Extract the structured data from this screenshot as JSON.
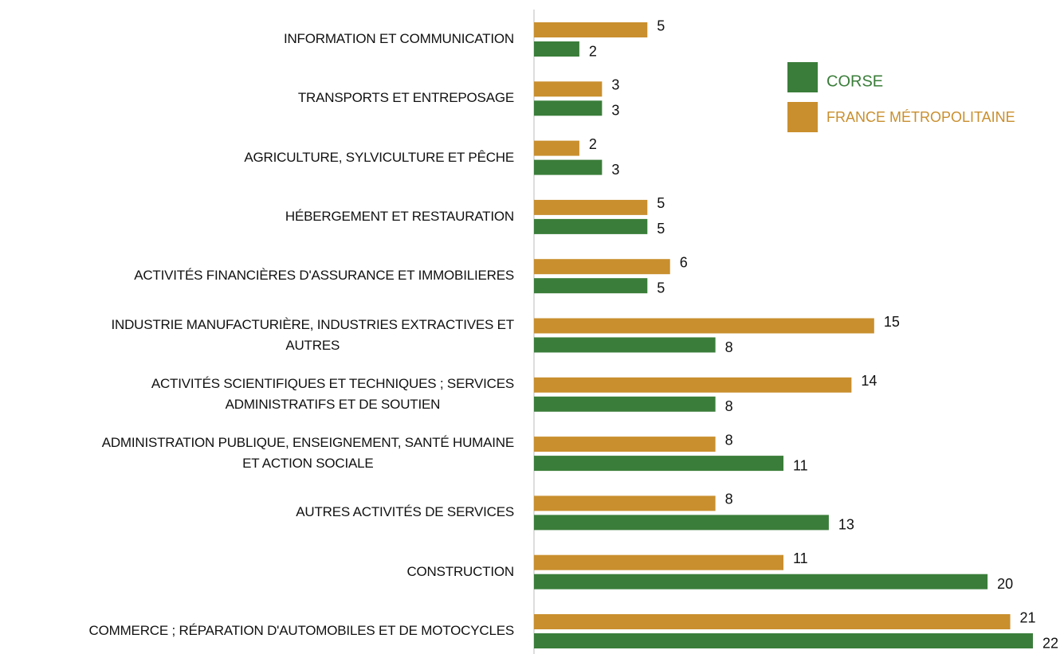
{
  "chart_data": {
    "type": "hbar",
    "categories": [
      "INFORMATION ET COMMUNICATION",
      "TRANSPORTS ET ENTREPOSAGE",
      "AGRICULTURE, SYLVICULTURE ET PÊCHE",
      "HÉBERGEMENT ET RESTAURATION",
      "ACTIVITÉS FINANCIÈRES D'ASSURANCE ET IMMOBILIERES",
      "INDUSTRIE MANUFACTURIÈRE, INDUSTRIES EXTRACTIVES  ET\nAUTRES",
      "ACTIVITÉS SCIENTIFIQUES ET TECHNIQUES ; SERVICES\nADMINISTRATIFS ET DE SOUTIEN",
      "ADMINISTRATION PUBLIQUE, ENSEIGNEMENT, SANTÉ HUMAINE\nET ACTION SOCIALE",
      "AUTRES ACTIVITÉS DE SERVICES",
      "CONSTRUCTION",
      "COMMERCE ; RÉPARATION D'AUTOMOBILES ET DE MOTOCYCLES"
    ],
    "series": [
      {
        "name": "FRANCE MÉTROPOLITAINE",
        "color": "#c98f2e",
        "values": [
          5,
          3,
          2,
          5,
          6,
          15,
          14,
          8,
          8,
          11,
          21
        ]
      },
      {
        "name": "CORSE",
        "color": "#3a7d3a",
        "values": [
          2,
          3,
          3,
          5,
          5,
          8,
          8,
          11,
          13,
          20,
          22
        ]
      }
    ],
    "xlim": [
      0,
      22
    ],
    "legend": "upper right"
  }
}
